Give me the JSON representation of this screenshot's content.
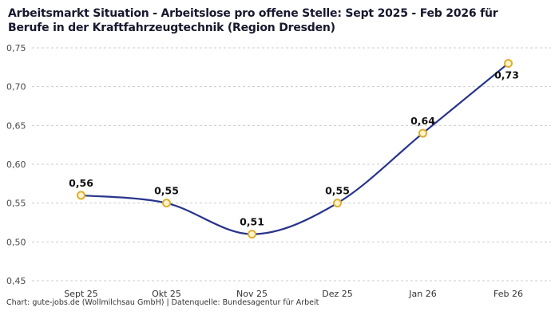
{
  "header": {
    "title": "Arbeitsmarkt Situation - Arbeitslose pro offene Stelle: Sept 2025 - Feb 2026 für Berufe in der Kraftfahrzeugtechnik (Region Dresden)"
  },
  "footer": {
    "credit": "Chart: gute-jobs.de (Wollmilchsau GmbH) | Datenquelle: Bundesagentur für Arbeit"
  },
  "chart_data": {
    "type": "line",
    "title": "Arbeitsmarkt Situation - Arbeitslose pro offene Stelle: Sept 2025 - Feb 2026 für Berufe in der Kraftfahrzeugtechnik (Region Dresden)",
    "categories": [
      "Sept 25",
      "Okt 25",
      "Nov 25",
      "Dez 25",
      "Jan 26",
      "Feb 26"
    ],
    "values": [
      0.56,
      0.55,
      0.51,
      0.55,
      0.64,
      0.73
    ],
    "value_labels": [
      "0,56",
      "0,55",
      "0,51",
      "0,55",
      "0,64",
      "0,73"
    ],
    "xlabel": "",
    "ylabel": "",
    "ylim": [
      0.45,
      0.75
    ],
    "y_tick_values": [
      0.45,
      0.5,
      0.55,
      0.6,
      0.65,
      0.7,
      0.75
    ],
    "y_tick_labels": [
      "0,45",
      "0,50",
      "0,55",
      "0,60",
      "0,65",
      "0,70",
      "0,75"
    ],
    "grid": "horizontal-dashed",
    "legend": "none",
    "colors": {
      "line": "#27348b",
      "marker_fill": "#fdf3cf",
      "marker_stroke": "#ddb02f",
      "grid": "#cccccc",
      "tick_text": "#4a4a4a",
      "label_text": "#111111"
    }
  }
}
